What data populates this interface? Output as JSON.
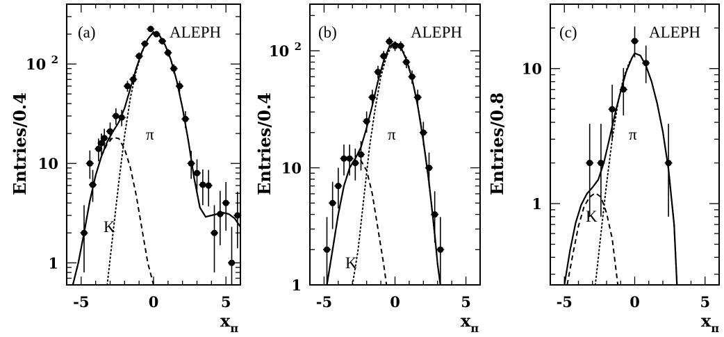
{
  "chart_data": [
    {
      "type": "scatter",
      "panel_label": "(a)",
      "experiment": "ALEPH",
      "ylabel": "Entries/0.4",
      "xlabel_main": "x",
      "xlabel_sub": "π",
      "y_scale": "log",
      "xlim": [
        -6,
        6
      ],
      "ylim": [
        0.6,
        400
      ],
      "x_ticks": [
        -5,
        0,
        5
      ],
      "y_ticks": [
        1,
        10,
        100
      ],
      "y_tick_labels": [
        "1",
        "10",
        "10 2"
      ],
      "component_labels": {
        "pi": "π",
        "k": "K"
      },
      "points": [
        {
          "x": -4.8,
          "y": 2.0,
          "el": 1.2,
          "eh": 1.8
        },
        {
          "x": -4.4,
          "y": 10.0,
          "el": 3.0,
          "eh": 3.5
        },
        {
          "x": -4.2,
          "y": 6.1,
          "el": 2.0,
          "eh": 2.5
        },
        {
          "x": -3.8,
          "y": 14.0,
          "el": 3.5,
          "eh": 3.8
        },
        {
          "x": -3.6,
          "y": 16.0,
          "el": 3.8,
          "eh": 4.0
        },
        {
          "x": -3.4,
          "y": 18.0,
          "el": 4.0,
          "eh": 4.3
        },
        {
          "x": -3.0,
          "y": 21.0,
          "el": 4.5,
          "eh": 4.8
        },
        {
          "x": -2.6,
          "y": 30.0,
          "el": 5.5,
          "eh": 5.8
        },
        {
          "x": -2.2,
          "y": 29.0,
          "el": 5.3,
          "eh": 5.6
        },
        {
          "x": -1.8,
          "y": 60.0,
          "el": 7.5,
          "eh": 7.8
        },
        {
          "x": -1.4,
          "y": 70.0,
          "el": 8.0,
          "eh": 8.5
        },
        {
          "x": -1.0,
          "y": 120.0,
          "el": 11.0,
          "eh": 11.0
        },
        {
          "x": -0.6,
          "y": 160.0,
          "el": 12.5,
          "eh": 12.5
        },
        {
          "x": -0.2,
          "y": 225.0,
          "el": 15.0,
          "eh": 15.0
        },
        {
          "x": 0.2,
          "y": 200.0,
          "el": 14.0,
          "eh": 14.0
        },
        {
          "x": 0.6,
          "y": 170.0,
          "el": 13.0,
          "eh": 13.0
        },
        {
          "x": 1.0,
          "y": 130.0,
          "el": 11.5,
          "eh": 11.5
        },
        {
          "x": 1.4,
          "y": 90.0,
          "el": 9.5,
          "eh": 9.5
        },
        {
          "x": 1.8,
          "y": 60.0,
          "el": 7.8,
          "eh": 7.8
        },
        {
          "x": 2.2,
          "y": 28.0,
          "el": 5.3,
          "eh": 5.5
        },
        {
          "x": 2.6,
          "y": 10.0,
          "el": 3.0,
          "eh": 3.4
        },
        {
          "x": 3.0,
          "y": 8.0,
          "el": 2.7,
          "eh": 3.0
        },
        {
          "x": 3.4,
          "y": 6.1,
          "el": 2.3,
          "eh": 2.6
        },
        {
          "x": 3.8,
          "y": 6.0,
          "el": 2.3,
          "eh": 2.6
        },
        {
          "x": 4.2,
          "y": 2.0,
          "el": 1.2,
          "eh": 1.8
        },
        {
          "x": 4.6,
          "y": 3.1,
          "el": 1.6,
          "eh": 2.2
        },
        {
          "x": 5.0,
          "y": 4.0,
          "el": 1.9,
          "eh": 2.5
        },
        {
          "x": 5.4,
          "y": 1.0,
          "el": 0.6,
          "eh": 1.3
        },
        {
          "x": 5.8,
          "y": 3.0,
          "el": 1.6,
          "eh": 2.2
        }
      ],
      "fit_total": [
        [
          -5.6,
          0.58
        ],
        [
          -5.2,
          1.0
        ],
        [
          -4.8,
          2.0
        ],
        [
          -4.4,
          4.2
        ],
        [
          -4.0,
          7.6
        ],
        [
          -3.6,
          11.8
        ],
        [
          -3.2,
          16.5
        ],
        [
          -2.8,
          21.0
        ],
        [
          -2.4,
          26.0
        ],
        [
          -2.0,
          36.0
        ],
        [
          -1.6,
          57.0
        ],
        [
          -1.2,
          90.0
        ],
        [
          -0.8,
          133.0
        ],
        [
          -0.4,
          178.0
        ],
        [
          0.0,
          210.0
        ],
        [
          0.4,
          195.0
        ],
        [
          0.8,
          155.0
        ],
        [
          1.2,
          110.0
        ],
        [
          1.6,
          68.0
        ],
        [
          2.0,
          36.0
        ],
        [
          2.4,
          17.0
        ],
        [
          2.8,
          7.2
        ],
        [
          3.2,
          3.6
        ],
        [
          3.6,
          2.9
        ],
        [
          4.0,
          3.0
        ],
        [
          4.4,
          3.1
        ],
        [
          4.8,
          3.2
        ],
        [
          5.2,
          3.1
        ],
        [
          5.6,
          2.8
        ],
        [
          6.0,
          2.3
        ]
      ],
      "fit_k": [
        [
          -5.6,
          0.58
        ],
        [
          -5.2,
          1.0
        ],
        [
          -4.8,
          2.0
        ],
        [
          -4.4,
          4.2
        ],
        [
          -4.0,
          7.6
        ],
        [
          -3.6,
          11.8
        ],
        [
          -3.2,
          15.8
        ],
        [
          -2.8,
          18.3
        ],
        [
          -2.4,
          17.8
        ],
        [
          -2.0,
          14.0
        ],
        [
          -1.6,
          9.0
        ],
        [
          -1.2,
          4.8
        ],
        [
          -0.8,
          2.2
        ],
        [
          -0.4,
          1.0
        ],
        [
          0.0,
          0.6
        ]
      ],
      "fit_pi": [
        [
          -3.2,
          0.6
        ],
        [
          -2.8,
          2.0
        ],
        [
          -2.4,
          6.5
        ],
        [
          -2.0,
          19.0
        ],
        [
          -1.6,
          46.0
        ],
        [
          -1.2,
          85.0
        ],
        [
          -0.8,
          131.0
        ],
        [
          -0.4,
          178.0
        ],
        [
          0.0,
          210.0
        ],
        [
          0.4,
          195.0
        ],
        [
          0.8,
          155.0
        ],
        [
          1.2,
          110.0
        ],
        [
          1.6,
          68.0
        ],
        [
          2.0,
          36.0
        ],
        [
          2.4,
          17.0
        ],
        [
          2.8,
          7.2
        ],
        [
          3.2,
          3.6
        ]
      ]
    },
    {
      "type": "scatter",
      "panel_label": "(b)",
      "experiment": "ALEPH",
      "ylabel": "Entries/0.4",
      "xlabel_main": "x",
      "xlabel_sub": "π",
      "y_scale": "log",
      "xlim": [
        -6,
        6
      ],
      "ylim": [
        1,
        250
      ],
      "x_ticks": [
        -5,
        0,
        5
      ],
      "y_ticks": [
        1,
        10,
        100
      ],
      "y_tick_labels": [
        "1",
        "10",
        "10 2"
      ],
      "component_labels": {
        "pi": "π",
        "k": "K"
      },
      "points": [
        {
          "x": -4.8,
          "y": 2.0,
          "el": 1.0,
          "eh": 1.8
        },
        {
          "x": -4.4,
          "y": 5.0,
          "el": 2.0,
          "eh": 2.6
        },
        {
          "x": -4.0,
          "y": 7.0,
          "el": 2.5,
          "eh": 3.0
        },
        {
          "x": -3.6,
          "y": 12.0,
          "el": 3.4,
          "eh": 3.8
        },
        {
          "x": -3.2,
          "y": 12.0,
          "el": 3.4,
          "eh": 3.8
        },
        {
          "x": -2.8,
          "y": 11.0,
          "el": 3.2,
          "eh": 3.6
        },
        {
          "x": -2.4,
          "y": 13.0,
          "el": 3.5,
          "eh": 3.9
        },
        {
          "x": -2.0,
          "y": 25.0,
          "el": 5.0,
          "eh": 5.3
        },
        {
          "x": -1.6,
          "y": 40.0,
          "el": 6.3,
          "eh": 6.5
        },
        {
          "x": -1.2,
          "y": 66.0,
          "el": 8.0,
          "eh": 8.3
        },
        {
          "x": -0.8,
          "y": 90.0,
          "el": 9.5,
          "eh": 9.5
        },
        {
          "x": -0.4,
          "y": 120.0,
          "el": 11.0,
          "eh": 11.0
        },
        {
          "x": 0.0,
          "y": 110.0,
          "el": 10.5,
          "eh": 10.5
        },
        {
          "x": 0.4,
          "y": 110.0,
          "el": 10.5,
          "eh": 10.5
        },
        {
          "x": 0.8,
          "y": 80.0,
          "el": 9.0,
          "eh": 9.0
        },
        {
          "x": 1.2,
          "y": 60.0,
          "el": 7.7,
          "eh": 7.8
        },
        {
          "x": 1.6,
          "y": 40.0,
          "el": 6.3,
          "eh": 6.5
        },
        {
          "x": 2.0,
          "y": 20.0,
          "el": 4.4,
          "eh": 4.7
        },
        {
          "x": 2.4,
          "y": 10.0,
          "el": 3.1,
          "eh": 3.5
        },
        {
          "x": 2.8,
          "y": 4.0,
          "el": 1.7,
          "eh": 2.3
        },
        {
          "x": 3.2,
          "y": 2.0,
          "el": 1.0,
          "eh": 1.8
        }
      ],
      "fit_total": [
        [
          -4.8,
          1.0
        ],
        [
          -4.4,
          2.0
        ],
        [
          -4.0,
          4.0
        ],
        [
          -3.6,
          7.0
        ],
        [
          -3.2,
          10.0
        ],
        [
          -2.8,
          12.0
        ],
        [
          -2.4,
          15.0
        ],
        [
          -2.0,
          22.0
        ],
        [
          -1.6,
          34.0
        ],
        [
          -1.2,
          55.0
        ],
        [
          -0.8,
          82.0
        ],
        [
          -0.4,
          108.0
        ],
        [
          0.0,
          118.0
        ],
        [
          0.4,
          108.0
        ],
        [
          0.8,
          84.0
        ],
        [
          1.2,
          58.0
        ],
        [
          1.6,
          34.0
        ],
        [
          2.0,
          17.0
        ],
        [
          2.4,
          7.5
        ],
        [
          2.8,
          2.7
        ],
        [
          3.0,
          1.5
        ],
        [
          3.2,
          1.0
        ]
      ],
      "fit_k": [
        [
          -4.8,
          1.0
        ],
        [
          -4.4,
          2.0
        ],
        [
          -4.0,
          4.0
        ],
        [
          -3.6,
          7.0
        ],
        [
          -3.2,
          10.0
        ],
        [
          -2.8,
          11.5
        ],
        [
          -2.4,
          11.5
        ],
        [
          -2.0,
          9.5
        ],
        [
          -1.6,
          6.0
        ],
        [
          -1.2,
          3.0
        ],
        [
          -0.8,
          1.5
        ],
        [
          -0.6,
          1.0
        ]
      ],
      "fit_pi": [
        [
          -3.0,
          1.0
        ],
        [
          -2.6,
          2.0
        ],
        [
          -2.2,
          5.5
        ],
        [
          -1.8,
          15.0
        ],
        [
          -1.4,
          32.0
        ],
        [
          -1.0,
          60.0
        ],
        [
          -0.6,
          90.0
        ],
        [
          -0.2,
          112.0
        ],
        [
          0.2,
          115.0
        ],
        [
          0.6,
          98.0
        ],
        [
          1.0,
          72.0
        ],
        [
          1.4,
          45.0
        ],
        [
          1.8,
          25.0
        ],
        [
          2.2,
          11.5
        ],
        [
          2.6,
          4.5
        ],
        [
          3.0,
          1.5
        ],
        [
          3.2,
          1.0
        ]
      ]
    },
    {
      "type": "scatter",
      "panel_label": "(c)",
      "experiment": "ALEPH",
      "ylabel": "Entries/0.8",
      "xlabel_main": "x",
      "xlabel_sub": "π",
      "y_scale": "log",
      "xlim": [
        -6,
        6
      ],
      "ylim": [
        0.25,
        30
      ],
      "x_ticks": [
        -5,
        0,
        5
      ],
      "y_ticks": [
        1,
        10
      ],
      "y_tick_labels": [
        "1",
        "10"
      ],
      "component_labels": {
        "pi": "π",
        "k": "K"
      },
      "points": [
        {
          "x": -3.2,
          "y": 2.0,
          "el": 1.2,
          "eh": 1.9
        },
        {
          "x": -2.4,
          "y": 2.0,
          "el": 1.2,
          "eh": 1.9
        },
        {
          "x": -1.6,
          "y": 5.0,
          "el": 2.0,
          "eh": 2.6
        },
        {
          "x": -0.8,
          "y": 7.0,
          "el": 2.5,
          "eh": 3.1
        },
        {
          "x": 0.0,
          "y": 16.0,
          "el": 3.9,
          "eh": 4.5
        },
        {
          "x": 0.8,
          "y": 11.0,
          "el": 3.2,
          "eh": 3.8
        },
        {
          "x": 2.4,
          "y": 2.0,
          "el": 1.2,
          "eh": 1.9
        }
      ],
      "fit_total": [
        [
          -5.0,
          0.25
        ],
        [
          -4.6,
          0.45
        ],
        [
          -4.2,
          0.72
        ],
        [
          -3.8,
          0.98
        ],
        [
          -3.4,
          1.18
        ],
        [
          -3.0,
          1.32
        ],
        [
          -2.6,
          1.5
        ],
        [
          -2.2,
          2.0
        ],
        [
          -1.8,
          3.0
        ],
        [
          -1.4,
          4.6
        ],
        [
          -1.0,
          6.8
        ],
        [
          -0.6,
          9.5
        ],
        [
          -0.2,
          12.0
        ],
        [
          0.0,
          13.0
        ],
        [
          0.4,
          12.5
        ],
        [
          0.8,
          10.5
        ],
        [
          1.2,
          8.0
        ],
        [
          1.6,
          5.5
        ],
        [
          2.0,
          3.4
        ],
        [
          2.4,
          1.8
        ],
        [
          2.8,
          0.7
        ],
        [
          3.0,
          0.25
        ]
      ],
      "fit_k": [
        [
          -4.8,
          0.25
        ],
        [
          -4.4,
          0.42
        ],
        [
          -4.0,
          0.68
        ],
        [
          -3.6,
          0.95
        ],
        [
          -3.2,
          1.12
        ],
        [
          -2.8,
          1.2
        ],
        [
          -2.4,
          1.12
        ],
        [
          -2.0,
          0.85
        ],
        [
          -1.6,
          0.55
        ],
        [
          -1.2,
          0.25
        ]
      ],
      "fit_pi": [
        [
          -2.8,
          0.25
        ],
        [
          -2.4,
          0.6
        ],
        [
          -2.0,
          1.4
        ],
        [
          -1.6,
          3.0
        ],
        [
          -1.2,
          5.5
        ],
        [
          -0.8,
          8.5
        ],
        [
          -0.4,
          11.0
        ],
        [
          0.0,
          13.0
        ],
        [
          0.4,
          12.5
        ],
        [
          0.8,
          10.5
        ],
        [
          1.2,
          8.0
        ],
        [
          1.6,
          5.5
        ],
        [
          2.0,
          3.4
        ],
        [
          2.4,
          1.8
        ],
        [
          2.8,
          0.7
        ],
        [
          3.0,
          0.25
        ]
      ]
    }
  ]
}
